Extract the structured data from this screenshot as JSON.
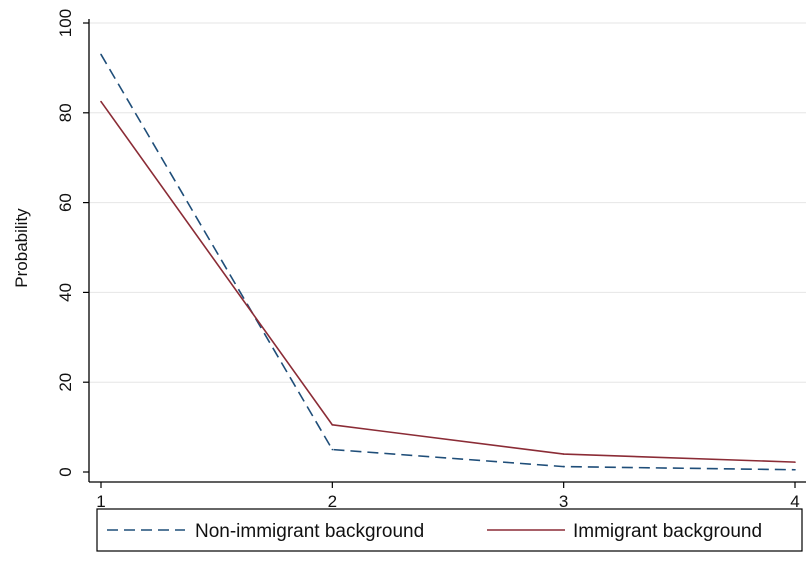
{
  "chart_data": {
    "type": "line",
    "title": "",
    "xlabel": "",
    "ylabel": "Probability",
    "x": [
      1,
      2,
      3,
      4
    ],
    "xlim": [
      1,
      4
    ],
    "ylim": [
      0,
      100
    ],
    "x_ticks": [
      1,
      2,
      3,
      4
    ],
    "y_ticks": [
      0,
      20,
      40,
      60,
      80,
      100
    ],
    "grid": true,
    "legend_position": "bottom",
    "series": [
      {
        "name": "Non-immigrant background",
        "values": [
          93,
          5,
          1.2,
          0.5
        ],
        "color": "#1f4e79",
        "style": "dashed"
      },
      {
        "name": "Immigrant background",
        "values": [
          82.5,
          10.5,
          4,
          2.2
        ],
        "color": "#8b2c36",
        "style": "solid"
      }
    ]
  }
}
